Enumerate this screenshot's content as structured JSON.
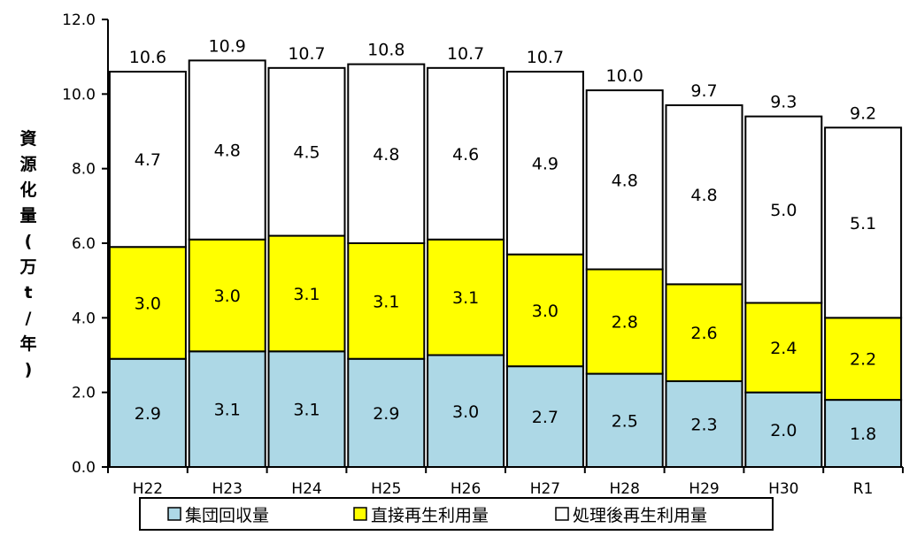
{
  "chart_data": {
    "type": "bar",
    "stacked": true,
    "categories": [
      "H22",
      "H23",
      "H24",
      "H25",
      "H26",
      "H27",
      "H28",
      "H29",
      "H30",
      "R1"
    ],
    "series": [
      {
        "name": "集団回収量",
        "color": "#add8e6",
        "values": [
          2.9,
          3.1,
          3.1,
          2.9,
          3.0,
          2.7,
          2.5,
          2.3,
          2.0,
          1.8
        ]
      },
      {
        "name": "直接再生利用量",
        "color": "#ffff00",
        "values": [
          3.0,
          3.0,
          3.1,
          3.1,
          3.1,
          3.0,
          2.8,
          2.6,
          2.4,
          2.2
        ]
      },
      {
        "name": "処理後再生利用量",
        "color": "#ffffff",
        "values": [
          4.7,
          4.8,
          4.5,
          4.8,
          4.6,
          4.9,
          4.8,
          4.8,
          5.0,
          5.1
        ]
      }
    ],
    "totals": [
      "10.6",
      "10.9",
      "10.7",
      "10.8",
      "10.7",
      "10.7",
      "10.0",
      "9.7",
      "9.3",
      "9.2"
    ],
    "ylabel": "資源化量(万t/年)",
    "ylim": [
      0,
      12
    ],
    "yticks": [
      "0.0",
      "2.0",
      "4.0",
      "6.0",
      "8.0",
      "10.0",
      "12.0"
    ],
    "legend_position": "bottom",
    "grid": false
  }
}
